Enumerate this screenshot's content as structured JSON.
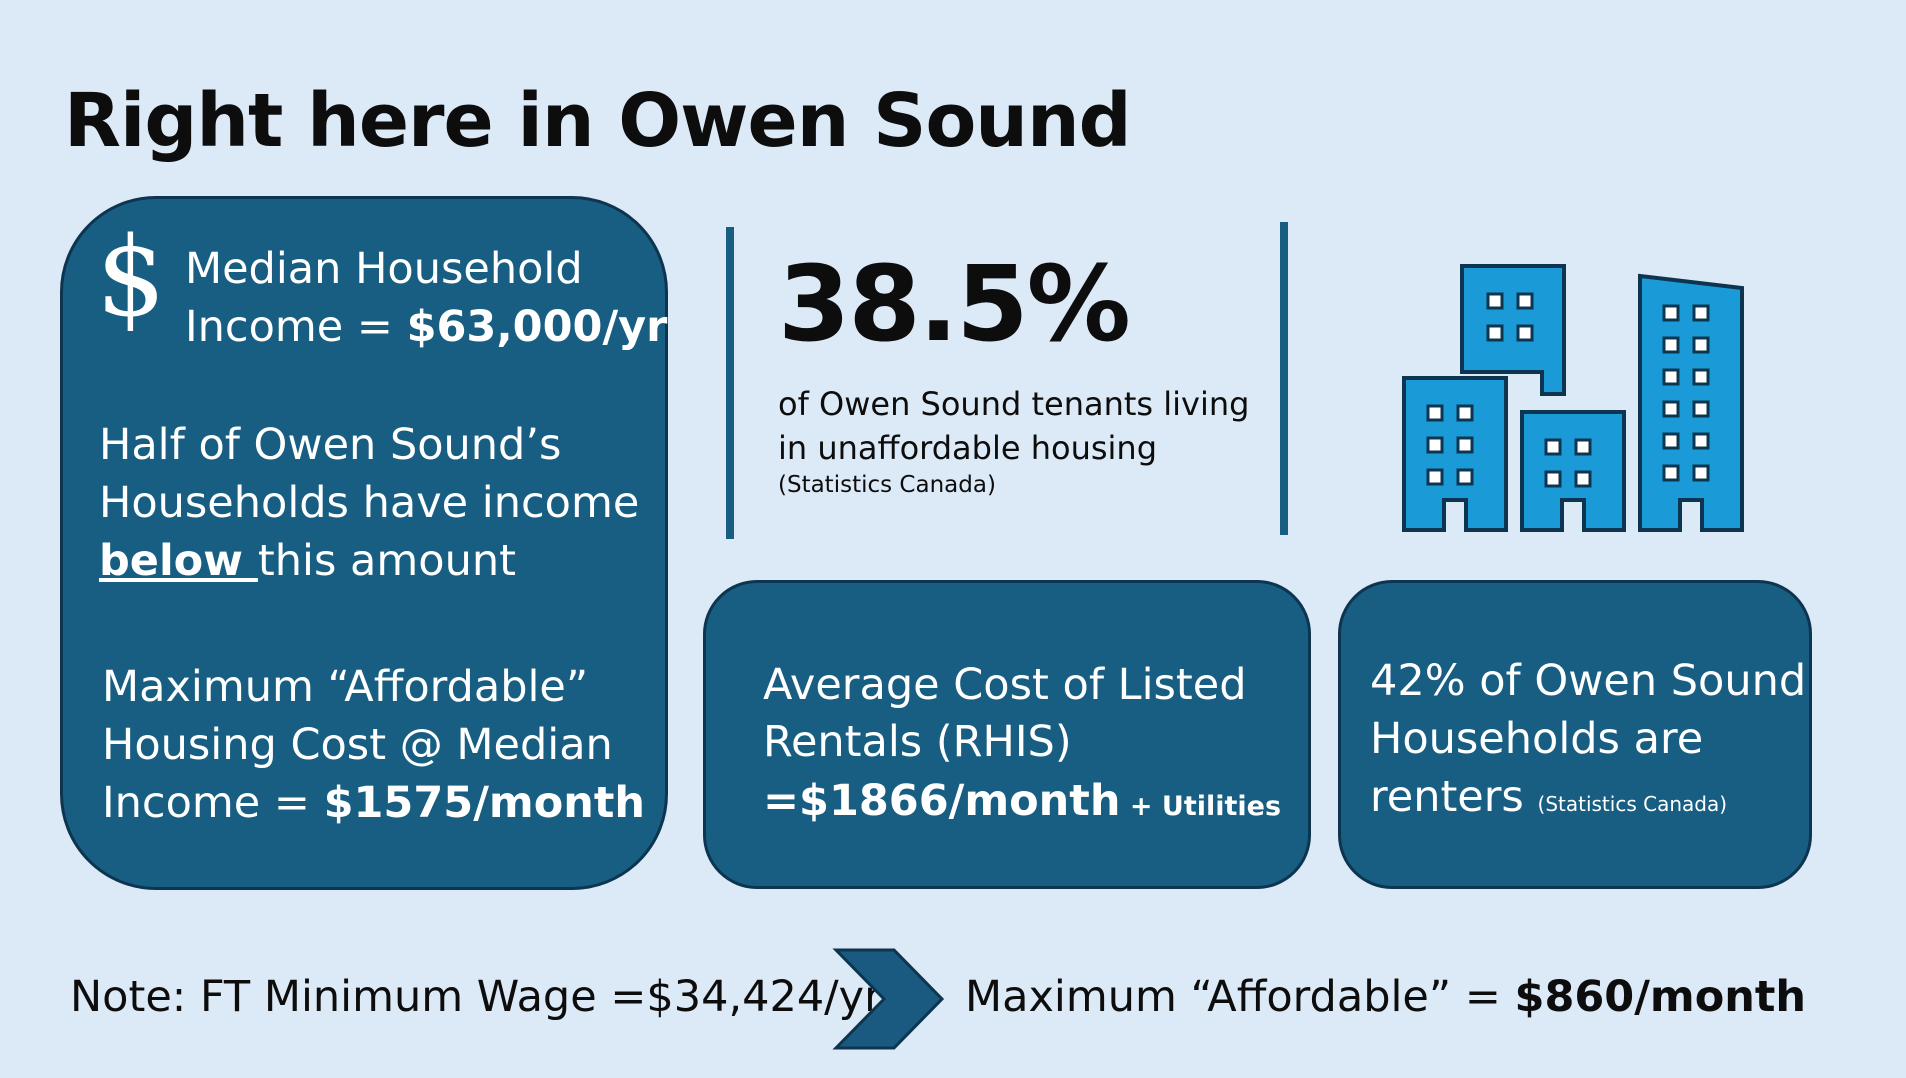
{
  "title": "Right here in Owen Sound",
  "left_card": {
    "icon": "dollar-icon",
    "income_line1": "Median Household",
    "income_line2_prefix": "Income = ",
    "income_value": "$63,000/yr",
    "half_line1": "Half of Owen Sound’s",
    "half_line2": "Households have income",
    "half_below": "below ",
    "half_rest": "this amount",
    "max_line1": "Maximum “Affordable”",
    "max_line2": "Housing Cost @ Median",
    "max_line3_prefix": "Income = ",
    "max_value": "$1575/month"
  },
  "stat": {
    "value": "38.5%",
    "desc_line1": "of Owen Sound tenants living",
    "desc_line2": "in unaffordable housing",
    "source": "(Statistics Canada)"
  },
  "mid_card": {
    "line1": "Average Cost of  Listed",
    "line2": "Rentals (RHIS)",
    "value": "=$1866/month",
    "suffix": " + Utilities"
  },
  "right_card": {
    "line1": "42% of Owen Sound",
    "line2": "Households are",
    "line3": "renters ",
    "source": "(Statistics Canada)"
  },
  "buildings_icon": "buildings-icon",
  "bottom": {
    "note": "Note: FT Minimum Wage =$34,424/yr",
    "arrow_icon": "chevron-right-icon",
    "affordable_prefix": "Maximum  “Affordable” = ",
    "affordable_value": "$860/month"
  },
  "colors": {
    "background": "#dce9f6",
    "card": "#175e82",
    "card_border": "#0d3550",
    "icon_blue": "#1a9ad6",
    "arrow": "#1a5a80"
  }
}
